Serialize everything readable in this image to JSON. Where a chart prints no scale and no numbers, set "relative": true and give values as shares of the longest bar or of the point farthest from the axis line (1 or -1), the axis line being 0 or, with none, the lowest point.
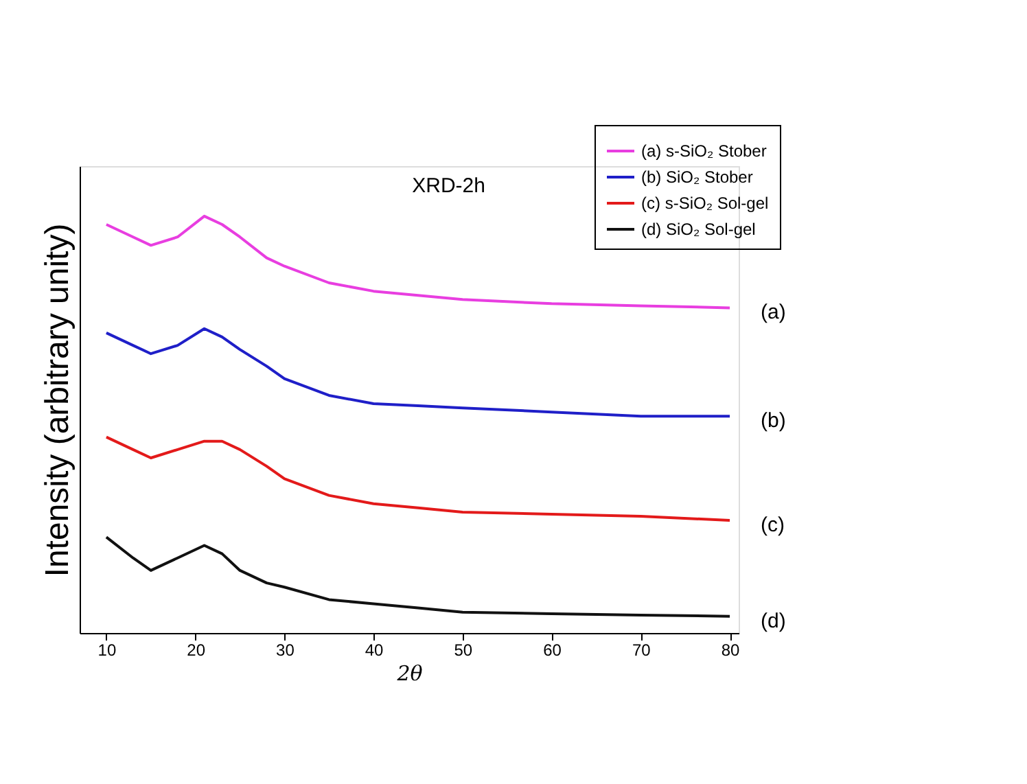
{
  "chart_data": {
    "type": "line",
    "title": "XRD-2h",
    "xlabel": "2θ",
    "ylabel": "Intensity (arbitrary unity)",
    "relative": true,
    "x": [
      10,
      13,
      15,
      18,
      21,
      23,
      25,
      28,
      30,
      35,
      40,
      45,
      50,
      60,
      70,
      80
    ],
    "xlim": [
      7,
      81
    ],
    "xticks": [
      10,
      20,
      30,
      40,
      50,
      60,
      70,
      80
    ],
    "series": [
      {
        "name": "(a) s-SiO₂ Stober",
        "color": "#e83ee0",
        "values": [
          0.98,
          0.95,
          0.93,
          0.95,
          1.0,
          0.98,
          0.95,
          0.9,
          0.88,
          0.84,
          0.82,
          0.81,
          0.8,
          0.79,
          0.785,
          0.78
        ]
      },
      {
        "name": "(b) SiO₂ Stober",
        "color": "#1f1fc8",
        "values": [
          0.72,
          0.69,
          0.67,
          0.69,
          0.73,
          0.71,
          0.68,
          0.64,
          0.61,
          0.57,
          0.55,
          0.545,
          0.54,
          0.53,
          0.52,
          0.52
        ]
      },
      {
        "name": "(c) s-SiO₂ Sol-gel",
        "color": "#e31a1a",
        "values": [
          0.47,
          0.44,
          0.42,
          0.44,
          0.46,
          0.46,
          0.44,
          0.4,
          0.37,
          0.33,
          0.31,
          0.3,
          0.29,
          0.285,
          0.28,
          0.27
        ]
      },
      {
        "name": "(d) SiO₂ Sol-gel",
        "color": "#111111",
        "values": [
          0.23,
          0.18,
          0.15,
          0.18,
          0.21,
          0.19,
          0.15,
          0.12,
          0.11,
          0.08,
          0.07,
          0.06,
          0.05,
          0.046,
          0.043,
          0.04
        ]
      }
    ],
    "annotations": [
      "(a)",
      "(b)",
      "(c)",
      "(d)"
    ],
    "legend": "top right",
    "grid": false,
    "marker": "none",
    "line_style": "solid"
  }
}
